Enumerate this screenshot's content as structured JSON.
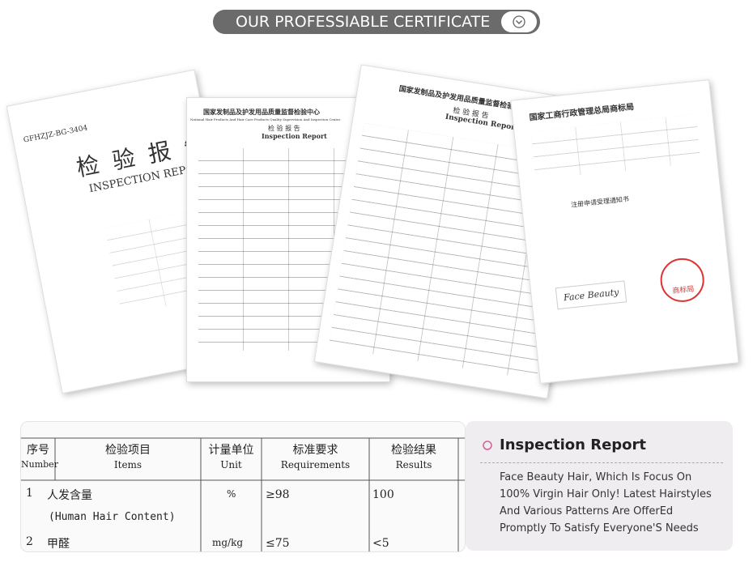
{
  "header": {
    "title": "OUR PROFESSIABLE CERTIFICATE"
  },
  "certificates": [
    {
      "code": "GFHZJZ-BG-3404",
      "title_cn": "检 验 报 告",
      "title_en": "INSPECTION REPORT"
    },
    {
      "title_cn": "国家发制品及护发用品质量监督检验中心",
      "title_en": "National Hair Products And Hair Care Products Quality Supervision And Inspection Center",
      "subtitle_cn": "检 验 报 告",
      "subtitle_en": "Inspection Report"
    },
    {
      "title_cn": "国家发制品及护发用品质量监督检验中心",
      "subtitle_cn": "检 验 报 告",
      "subtitle_en": "Inspection Report"
    },
    {
      "title_cn": "国家工商行政管理总局商标局",
      "notice": "注册申请受理通知书",
      "brand": "Face Beauty",
      "stamp": "商标局"
    }
  ],
  "table": {
    "headers": [
      [
        "序号",
        "Number"
      ],
      [
        "检验项目",
        "Items"
      ],
      [
        "计量单位",
        "Unit"
      ],
      [
        "标准要求",
        "Requirements"
      ],
      [
        "检验结果",
        "Results"
      ]
    ],
    "rows": [
      {
        "number": "1",
        "item": "人发含量",
        "item_en": "(Human Hair Content)",
        "unit": "%",
        "requirement": "≥98",
        "result": "100"
      },
      {
        "number": "2",
        "item": "甲醛",
        "unit": "mg/kg",
        "requirement": "≤75",
        "result": "<5"
      }
    ]
  },
  "info": {
    "title": "Inspection Report",
    "lines": [
      "Face Beauty Hair, Which Is Focus On",
      "100% Virgin Hair Only! Latest Hairstyles",
      "And Various Patterns Are OfferEd",
      "Promptly To Satisfy Everyone'S Needs"
    ]
  }
}
